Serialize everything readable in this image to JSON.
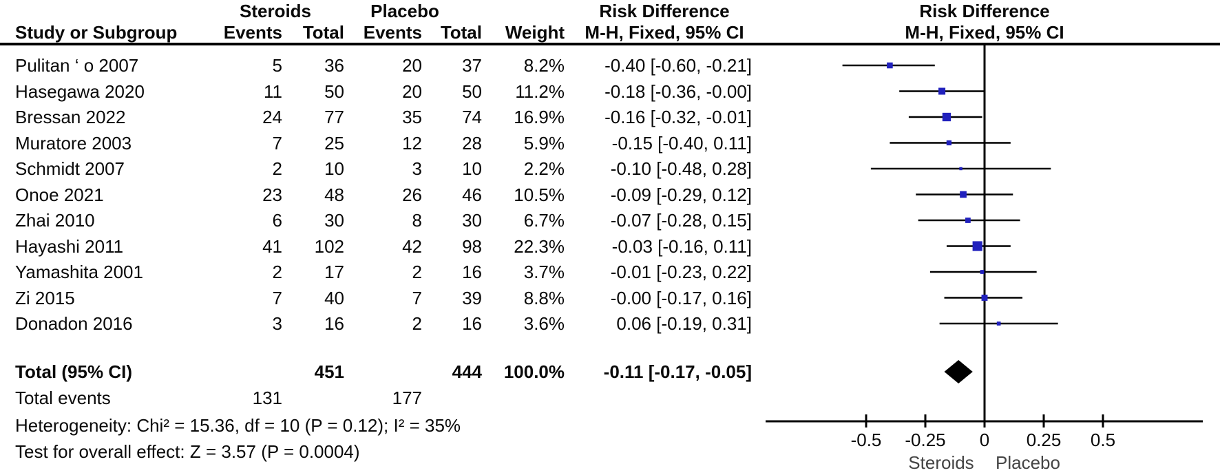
{
  "colors": {
    "marker_blue": "#2121bd",
    "diamond_black": "#000000",
    "line_black": "#000000",
    "axis_group_label_gray": "#444444"
  },
  "table": {
    "headers": {
      "group_steroids": "Steroids",
      "group_placebo": "Placebo",
      "study": "Study or Subgroup",
      "events": "Events",
      "total": "Total",
      "weight": "Weight",
      "risk_difference": "Risk Difference",
      "method": "M-H, Fixed, 95% CI"
    },
    "rows": [
      {
        "study": "Pulitan ‘ o 2007",
        "s_events": "5",
        "s_total": "36",
        "p_events": "20",
        "p_total": "37",
        "weight": "8.2%",
        "ci_text": "-0.40 [-0.60, -0.21]",
        "est": -0.4,
        "lo": -0.6,
        "hi": -0.21,
        "weight_pct": 8.2
      },
      {
        "study": "Hasegawa 2020",
        "s_events": "11",
        "s_total": "50",
        "p_events": "20",
        "p_total": "50",
        "weight": "11.2%",
        "ci_text": "-0.18 [-0.36, -0.00]",
        "est": -0.18,
        "lo": -0.36,
        "hi": 0.0,
        "weight_pct": 11.2
      },
      {
        "study": "Bressan 2022",
        "s_events": "24",
        "s_total": "77",
        "p_events": "35",
        "p_total": "74",
        "weight": "16.9%",
        "ci_text": "-0.16 [-0.32, -0.01]",
        "est": -0.16,
        "lo": -0.32,
        "hi": -0.01,
        "weight_pct": 16.9
      },
      {
        "study": "Muratore 2003",
        "s_events": "7",
        "s_total": "25",
        "p_events": "12",
        "p_total": "28",
        "weight": "5.9%",
        "ci_text": "-0.15 [-0.40, 0.11]",
        "est": -0.15,
        "lo": -0.4,
        "hi": 0.11,
        "weight_pct": 5.9
      },
      {
        "study": "Schmidt 2007",
        "s_events": "2",
        "s_total": "10",
        "p_events": "3",
        "p_total": "10",
        "weight": "2.2%",
        "ci_text": "-0.10 [-0.48, 0.28]",
        "est": -0.1,
        "lo": -0.48,
        "hi": 0.28,
        "weight_pct": 2.2
      },
      {
        "study": "Onoe 2021",
        "s_events": "23",
        "s_total": "48",
        "p_events": "26",
        "p_total": "46",
        "weight": "10.5%",
        "ci_text": "-0.09 [-0.29, 0.12]",
        "est": -0.09,
        "lo": -0.29,
        "hi": 0.12,
        "weight_pct": 10.5
      },
      {
        "study": "Zhai 2010",
        "s_events": "6",
        "s_total": "30",
        "p_events": "8",
        "p_total": "30",
        "weight": "6.7%",
        "ci_text": "-0.07 [-0.28, 0.15]",
        "est": -0.07,
        "lo": -0.28,
        "hi": 0.15,
        "weight_pct": 6.7
      },
      {
        "study": "Hayashi 2011",
        "s_events": "41",
        "s_total": "102",
        "p_events": "42",
        "p_total": "98",
        "weight": "22.3%",
        "ci_text": "-0.03 [-0.16, 0.11]",
        "est": -0.03,
        "lo": -0.16,
        "hi": 0.11,
        "weight_pct": 22.3
      },
      {
        "study": "Yamashita 2001",
        "s_events": "2",
        "s_total": "17",
        "p_events": "2",
        "p_total": "16",
        "weight": "3.7%",
        "ci_text": "-0.01 [-0.23, 0.22]",
        "est": -0.01,
        "lo": -0.23,
        "hi": 0.22,
        "weight_pct": 3.7
      },
      {
        "study": "Zi 2015",
        "s_events": "7",
        "s_total": "40",
        "p_events": "7",
        "p_total": "39",
        "weight": "8.8%",
        "ci_text": "-0.00 [-0.17, 0.16]",
        "est": 0.0,
        "lo": -0.17,
        "hi": 0.16,
        "weight_pct": 8.8
      },
      {
        "study": "Donadon 2016",
        "s_events": "3",
        "s_total": "16",
        "p_events": "2",
        "p_total": "16",
        "weight": "3.6%",
        "ci_text": "0.06 [-0.19, 0.31]",
        "est": 0.06,
        "lo": -0.19,
        "hi": 0.31,
        "weight_pct": 3.6
      }
    ],
    "totals": {
      "label": "Total (95% CI)",
      "s_total": "451",
      "p_total": "444",
      "weight": "100.0%",
      "ci_text": "-0.11 [-0.17, -0.05]",
      "est": -0.11,
      "lo": -0.17,
      "hi": -0.05
    },
    "total_events": {
      "label": "Total events",
      "s_events": "131",
      "p_events": "177"
    },
    "heterogeneity": "Heterogeneity: Chi² = 15.36, df = 10 (P = 0.12); I² = 35%",
    "overall_effect": "Test for overall effect: Z = 3.57 (P = 0.0004)"
  },
  "plot": {
    "tick_values": [
      -0.5,
      -0.25,
      0,
      0.25,
      0.5
    ],
    "tick_labels": [
      "-0.5",
      "-0.25",
      "0",
      "0.25",
      "0.5"
    ],
    "axis_min": -0.92,
    "axis_max": 0.92,
    "favours_left": "Steroids",
    "favours_right": "Placebo"
  },
  "chart_data": {
    "type": "scatter",
    "subtype": "forest-plot-meta-analysis",
    "title": "Risk Difference, M-H, Fixed, 95% CI — Steroids vs Placebo",
    "xlabel_groups": [
      "Steroids",
      "Placebo"
    ],
    "x_ticks": [
      -0.5,
      -0.25,
      0,
      0.25,
      0.5
    ],
    "xlim": [
      -0.92,
      0.92
    ],
    "studies": [
      "Pulitan ‘ o 2007",
      "Hasegawa 2020",
      "Bressan 2022",
      "Muratore 2003",
      "Schmidt 2007",
      "Onoe 2021",
      "Zhai 2010",
      "Hayashi 2011",
      "Yamashita 2001",
      "Zi 2015",
      "Donadon 2016"
    ],
    "series": [
      {
        "name": "risk_difference",
        "values": [
          -0.4,
          -0.18,
          -0.16,
          -0.15,
          -0.1,
          -0.09,
          -0.07,
          -0.03,
          -0.01,
          -0.0,
          0.06
        ]
      },
      {
        "name": "ci_lower",
        "values": [
          -0.6,
          -0.36,
          -0.32,
          -0.4,
          -0.48,
          -0.29,
          -0.28,
          -0.16,
          -0.23,
          -0.17,
          -0.19
        ]
      },
      {
        "name": "ci_upper",
        "values": [
          -0.21,
          -0.0,
          -0.01,
          0.11,
          0.28,
          0.12,
          0.15,
          0.11,
          0.22,
          0.16,
          0.31
        ]
      },
      {
        "name": "weight_pct",
        "values": [
          8.2,
          11.2,
          16.9,
          5.9,
          2.2,
          10.5,
          6.7,
          22.3,
          3.7,
          8.8,
          3.6
        ]
      },
      {
        "name": "steroids_events",
        "values": [
          5,
          11,
          24,
          7,
          2,
          23,
          6,
          41,
          2,
          7,
          3
        ]
      },
      {
        "name": "steroids_total",
        "values": [
          36,
          50,
          77,
          25,
          10,
          48,
          30,
          102,
          17,
          40,
          16
        ]
      },
      {
        "name": "placebo_events",
        "values": [
          20,
          20,
          35,
          12,
          3,
          26,
          8,
          42,
          2,
          7,
          2
        ]
      },
      {
        "name": "placebo_total",
        "values": [
          37,
          50,
          74,
          28,
          10,
          46,
          30,
          98,
          16,
          39,
          16
        ]
      }
    ],
    "overall": {
      "est": -0.11,
      "lo": -0.17,
      "hi": -0.05,
      "weight_pct": 100.0,
      "steroids_total": 451,
      "placebo_total": 444,
      "steroids_events": 131,
      "placebo_events": 177
    },
    "heterogeneity": {
      "chi2": 15.36,
      "df": 10,
      "p": 0.12,
      "i2_pct": 35
    },
    "overall_effect_test": {
      "z": 3.57,
      "p": 0.0004
    }
  }
}
